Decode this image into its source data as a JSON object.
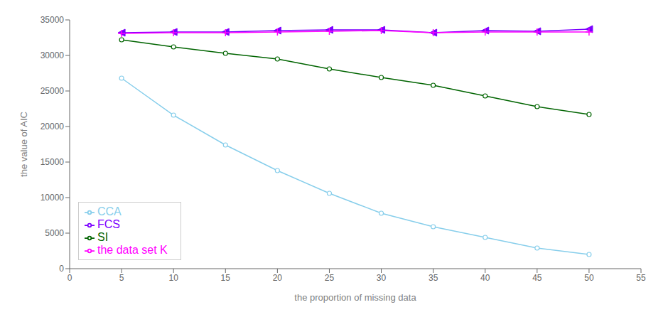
{
  "chart_data": {
    "type": "line",
    "xlabel": "the proportion of missing data",
    "ylabel": "the value of AIC",
    "x": [
      5,
      10,
      15,
      20,
      25,
      30,
      35,
      40,
      45,
      50
    ],
    "series": [
      {
        "name": "CCA",
        "color": "#87CEEB",
        "marker": "circle",
        "values": [
          26800,
          21600,
          17400,
          13800,
          10600,
          7800,
          5900,
          4400,
          2900,
          2000
        ]
      },
      {
        "name": "FCS",
        "color": "#7B00FF",
        "marker": "triangle-left",
        "values": [
          33200,
          33300,
          33300,
          33500,
          33600,
          33600,
          33200,
          33500,
          33400,
          33700
        ]
      },
      {
        "name": "the data set K",
        "color": "#FF00FF",
        "marker": "plus",
        "values": [
          33100,
          33200,
          33200,
          33300,
          33400,
          33500,
          33200,
          33300,
          33300,
          33300
        ]
      },
      {
        "name": "SI",
        "color": "#006400",
        "marker": "circle",
        "values": [
          32200,
          31200,
          30300,
          29500,
          28100,
          26900,
          25800,
          24300,
          22800,
          21700
        ]
      }
    ],
    "xlim": [
      0,
      55
    ],
    "ylim": [
      0,
      35000
    ],
    "xticks": [
      0,
      5,
      10,
      15,
      20,
      25,
      30,
      35,
      40,
      45,
      50,
      55
    ],
    "yticks": [
      0,
      5000,
      10000,
      15000,
      20000,
      25000,
      30000,
      35000
    ],
    "grid": false,
    "legend": "lower left"
  }
}
